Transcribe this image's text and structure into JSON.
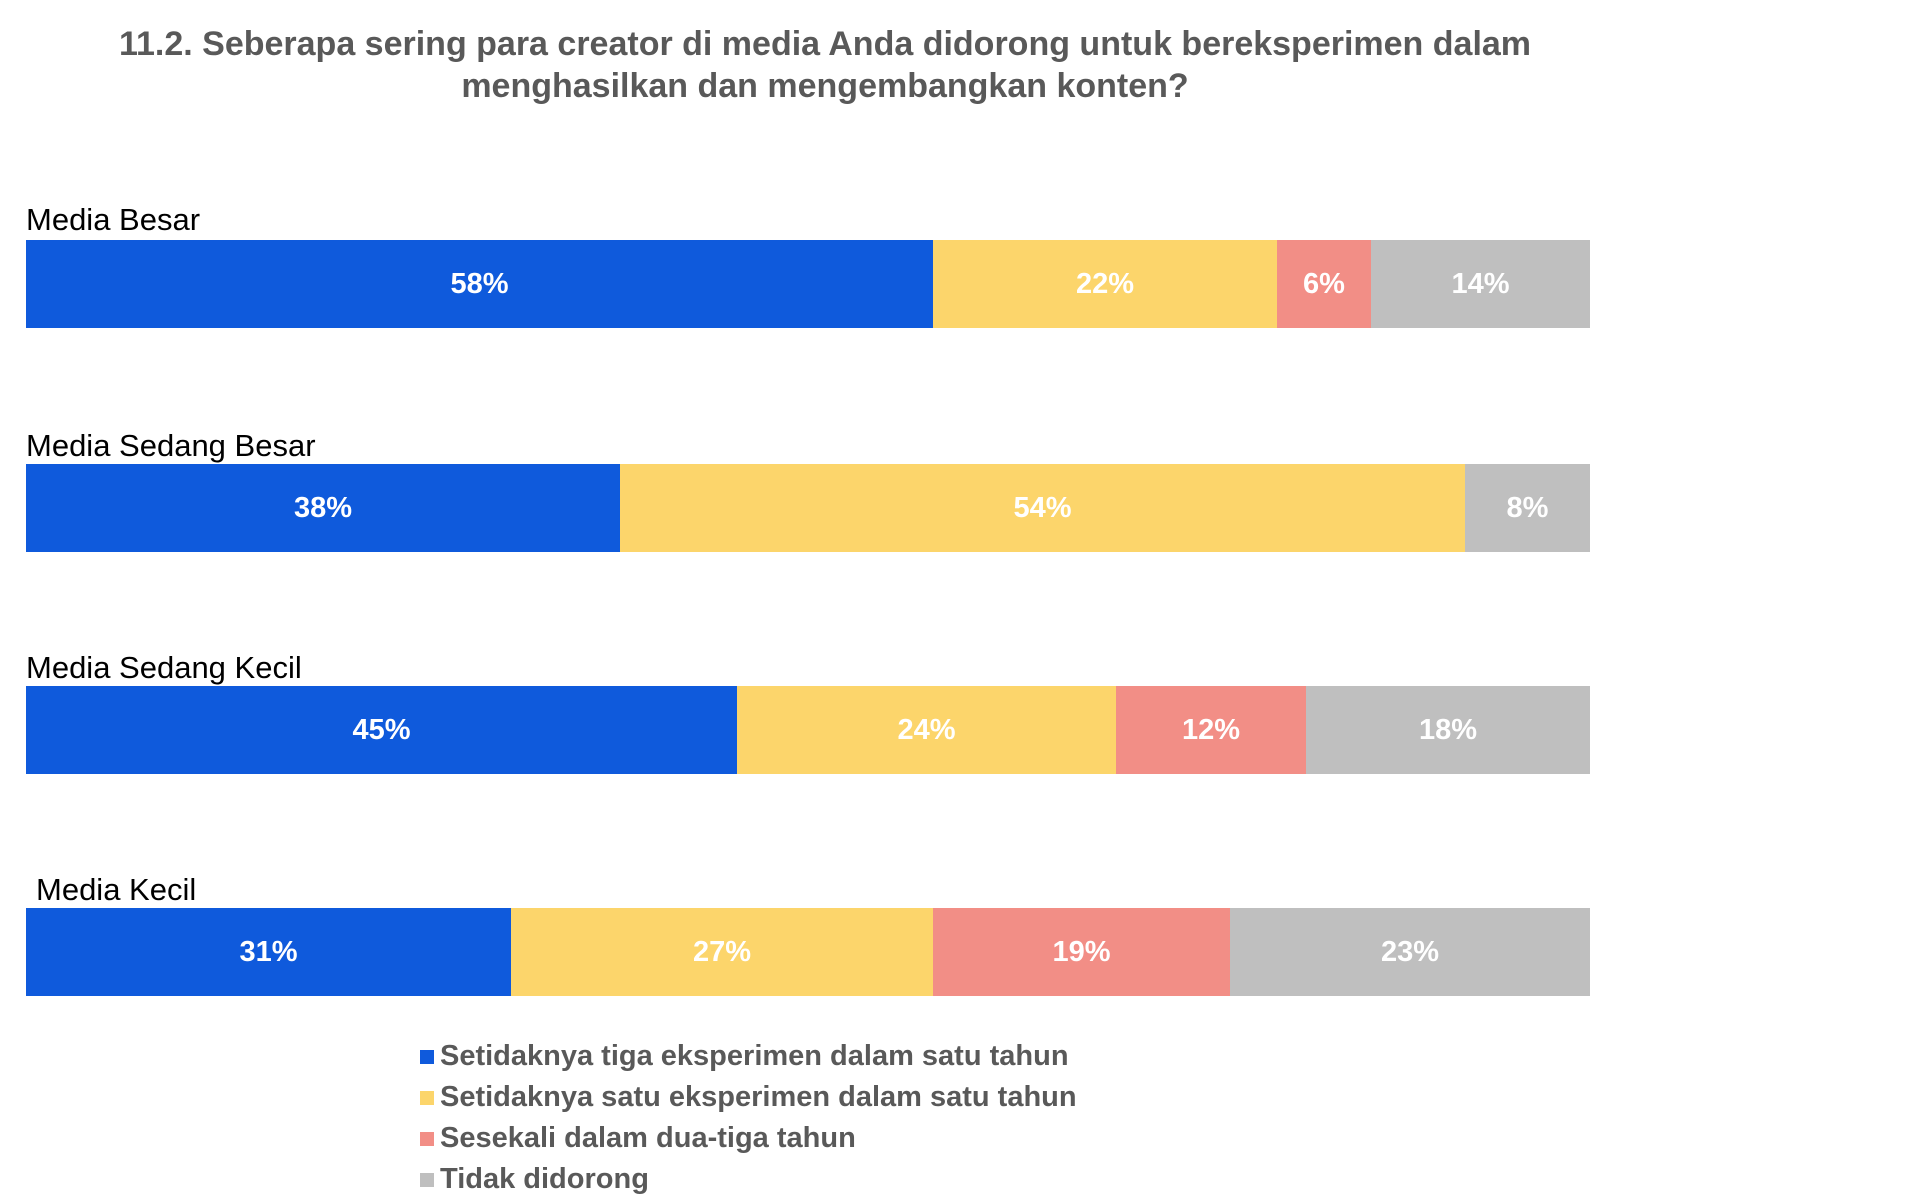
{
  "chart_data": {
    "type": "bar",
    "orientation": "horizontal",
    "stacked": true,
    "title_lines": [
      "11.2. Seberapa sering para creator di media Anda didorong untuk bereksperimen dalam",
      "menghasilkan dan mengembangkan konten?"
    ],
    "categories": [
      "Media Besar",
      "Media Sedang Besar",
      "Media Sedang Kecil",
      "Media Kecil"
    ],
    "series": [
      {
        "name": "Setidaknya tiga eksperimen dalam satu tahun",
        "color": "#0F5ADC",
        "values": [
          58,
          38,
          45,
          31
        ],
        "labels": [
          "58%",
          "38%",
          "45%",
          "31%"
        ]
      },
      {
        "name": "Setidaknya satu eksperimen dalam satu tahun",
        "color": "#FCD56B",
        "values": [
          22,
          54,
          24,
          27
        ],
        "labels": [
          "22%",
          "54%",
          "24%",
          "27%"
        ]
      },
      {
        "name": "Sesekali dalam dua-tiga tahun",
        "color": "#F28E86",
        "values": [
          6,
          0,
          12,
          19
        ],
        "labels": [
          "6%",
          "",
          "12%",
          "19%"
        ]
      },
      {
        "name": "Tidak didorong",
        "color": "#BFBFBF",
        "values": [
          14,
          8,
          18,
          23
        ],
        "labels": [
          "14%",
          "8%",
          "18%",
          "23%"
        ]
      }
    ],
    "xlim": [
      0,
      100
    ],
    "legend_position": "bottom"
  }
}
